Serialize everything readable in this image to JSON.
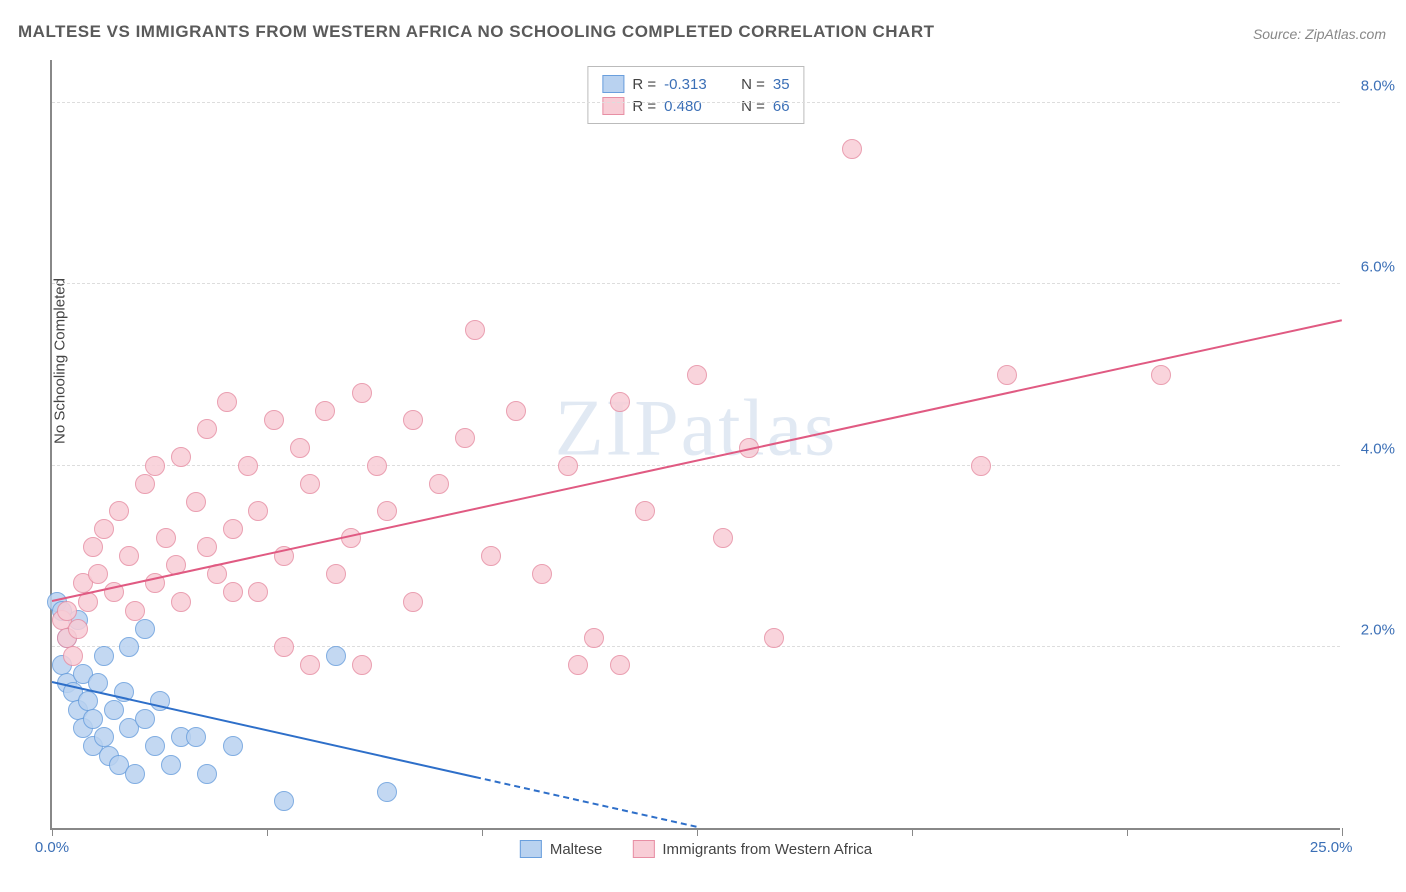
{
  "title": "MALTESE VS IMMIGRANTS FROM WESTERN AFRICA NO SCHOOLING COMPLETED CORRELATION CHART",
  "source": "Source: ZipAtlas.com",
  "ylabel": "No Schooling Completed",
  "watermark_a": "ZIP",
  "watermark_b": "atlas",
  "chart": {
    "type": "scatter",
    "xlim": [
      0,
      25
    ],
    "ylim": [
      0,
      8.5
    ],
    "xticks": [
      0,
      4.17,
      8.33,
      12.5,
      16.67,
      20.83,
      25
    ],
    "xtick_labels": {
      "first": "0.0%",
      "last": "25.0%"
    },
    "yticks": [
      2,
      4,
      6,
      8
    ],
    "ytick_labels": [
      "2.0%",
      "4.0%",
      "6.0%",
      "8.0%"
    ],
    "grid_color": "#dddddd",
    "axis_color": "#888888",
    "background_color": "#ffffff",
    "point_radius": 10,
    "series": [
      {
        "name": "Maltese",
        "color_fill": "#b9d2f0",
        "color_stroke": "#6a9fdd",
        "line_color": "#2e6fc9",
        "R": "-0.313",
        "N": "35",
        "trend": {
          "x1": 0,
          "y1": 1.6,
          "x2": 12.5,
          "y2": 0
        },
        "trend_solid_to_x": 8.2,
        "points": [
          [
            0.1,
            2.5
          ],
          [
            0.2,
            2.4
          ],
          [
            0.2,
            1.8
          ],
          [
            0.3,
            2.1
          ],
          [
            0.3,
            1.6
          ],
          [
            0.4,
            1.5
          ],
          [
            0.5,
            2.3
          ],
          [
            0.5,
            1.3
          ],
          [
            0.6,
            1.7
          ],
          [
            0.6,
            1.1
          ],
          [
            0.7,
            1.4
          ],
          [
            0.8,
            1.2
          ],
          [
            0.8,
            0.9
          ],
          [
            0.9,
            1.6
          ],
          [
            1.0,
            1.0
          ],
          [
            1.0,
            1.9
          ],
          [
            1.1,
            0.8
          ],
          [
            1.2,
            1.3
          ],
          [
            1.3,
            0.7
          ],
          [
            1.4,
            1.5
          ],
          [
            1.5,
            2.0
          ],
          [
            1.5,
            1.1
          ],
          [
            1.6,
            0.6
          ],
          [
            1.8,
            2.2
          ],
          [
            1.8,
            1.2
          ],
          [
            2.0,
            0.9
          ],
          [
            2.1,
            1.4
          ],
          [
            2.3,
            0.7
          ],
          [
            2.5,
            1.0
          ],
          [
            2.8,
            1.0
          ],
          [
            3.0,
            0.6
          ],
          [
            3.5,
            0.9
          ],
          [
            4.5,
            0.3
          ],
          [
            5.5,
            1.9
          ],
          [
            6.5,
            0.4
          ]
        ]
      },
      {
        "name": "Immigrants from Western Africa",
        "color_fill": "#f8cdd6",
        "color_stroke": "#e78fa4",
        "line_color": "#e05a82",
        "R": "0.480",
        "N": "66",
        "trend": {
          "x1": 0,
          "y1": 2.5,
          "x2": 25,
          "y2": 5.6
        },
        "trend_solid_to_x": 25,
        "points": [
          [
            0.2,
            2.3
          ],
          [
            0.3,
            2.1
          ],
          [
            0.3,
            2.4
          ],
          [
            0.4,
            1.9
          ],
          [
            0.5,
            2.2
          ],
          [
            0.6,
            2.7
          ],
          [
            0.7,
            2.5
          ],
          [
            0.8,
            3.1
          ],
          [
            0.9,
            2.8
          ],
          [
            1.0,
            3.3
          ],
          [
            1.2,
            2.6
          ],
          [
            1.3,
            3.5
          ],
          [
            1.5,
            3.0
          ],
          [
            1.6,
            2.4
          ],
          [
            1.8,
            3.8
          ],
          [
            2.0,
            2.7
          ],
          [
            2.0,
            4.0
          ],
          [
            2.2,
            3.2
          ],
          [
            2.4,
            2.9
          ],
          [
            2.5,
            4.1
          ],
          [
            2.5,
            2.5
          ],
          [
            2.8,
            3.6
          ],
          [
            3.0,
            3.1
          ],
          [
            3.0,
            4.4
          ],
          [
            3.2,
            2.8
          ],
          [
            3.4,
            4.7
          ],
          [
            3.5,
            3.3
          ],
          [
            3.5,
            2.6
          ],
          [
            3.8,
            4.0
          ],
          [
            4.0,
            3.5
          ],
          [
            4.0,
            2.6
          ],
          [
            4.3,
            4.5
          ],
          [
            4.5,
            3.0
          ],
          [
            4.5,
            2.0
          ],
          [
            4.8,
            4.2
          ],
          [
            5.0,
            3.8
          ],
          [
            5.0,
            1.8
          ],
          [
            5.3,
            4.6
          ],
          [
            5.5,
            2.8
          ],
          [
            5.8,
            3.2
          ],
          [
            6.0,
            4.8
          ],
          [
            6.0,
            1.8
          ],
          [
            6.3,
            4.0
          ],
          [
            6.5,
            3.5
          ],
          [
            7.0,
            4.5
          ],
          [
            7.0,
            2.5
          ],
          [
            7.5,
            3.8
          ],
          [
            8.0,
            4.3
          ],
          [
            8.2,
            5.5
          ],
          [
            8.5,
            3.0
          ],
          [
            9.0,
            4.6
          ],
          [
            9.5,
            2.8
          ],
          [
            10.0,
            4.0
          ],
          [
            10.2,
            1.8
          ],
          [
            10.5,
            2.1
          ],
          [
            11.0,
            4.7
          ],
          [
            11.0,
            1.8
          ],
          [
            11.5,
            3.5
          ],
          [
            12.5,
            5.0
          ],
          [
            13.0,
            3.2
          ],
          [
            13.5,
            4.2
          ],
          [
            15.5,
            7.5
          ],
          [
            18.0,
            4.0
          ],
          [
            18.5,
            5.0
          ],
          [
            21.5,
            5.0
          ],
          [
            14.0,
            2.1
          ]
        ]
      }
    ]
  },
  "legend": {
    "stat_R_label": "R =",
    "stat_N_label": "N ="
  }
}
